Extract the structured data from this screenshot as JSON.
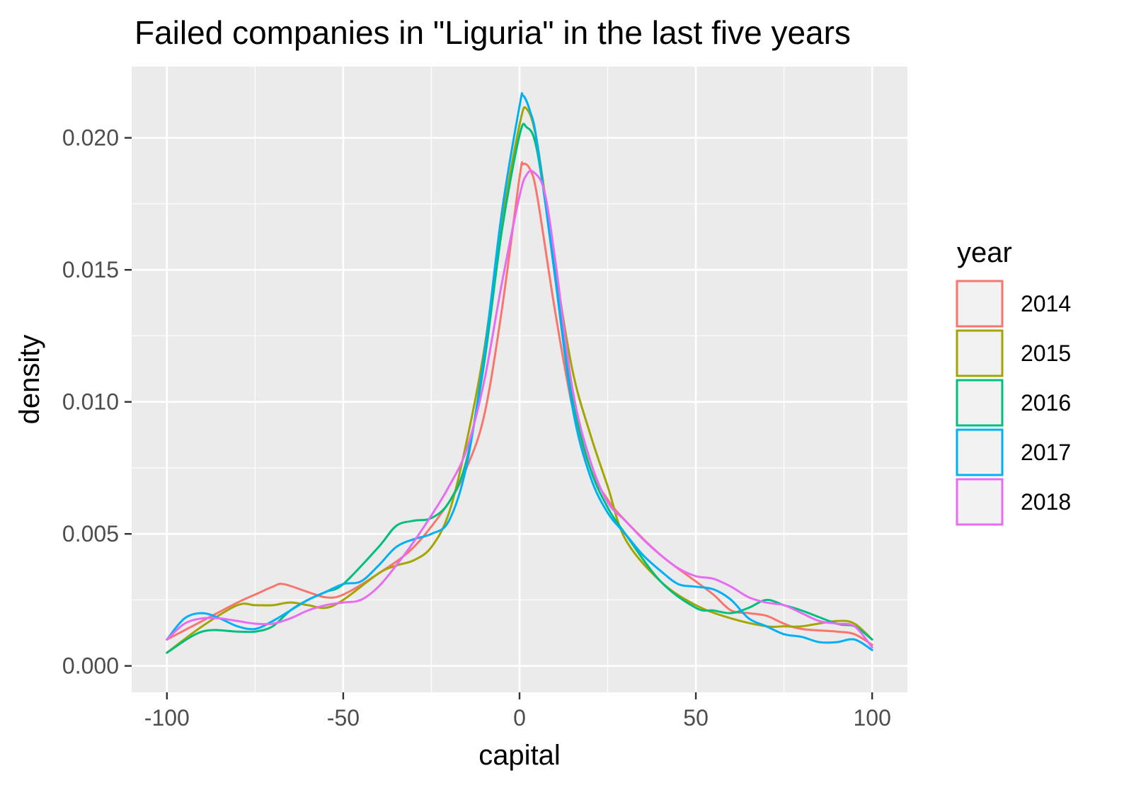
{
  "chart_data": {
    "type": "line",
    "title": "Failed companies in \"Liguria\" in the last five years",
    "xlabel": "capital",
    "ylabel": "density",
    "xlim": [
      -110,
      110
    ],
    "ylim": [
      -0.001,
      0.0227
    ],
    "x_ticks": [
      -100,
      -50,
      0,
      50,
      100
    ],
    "x_tick_labels": [
      "-100",
      "-50",
      "0",
      "50",
      "100"
    ],
    "y_ticks": [
      0.0,
      0.005,
      0.01,
      0.015,
      0.02
    ],
    "y_tick_labels": [
      "0.000",
      "0.005",
      "0.010",
      "0.015",
      "0.020"
    ],
    "grid": true,
    "legend": {
      "title": "year",
      "position": "right"
    },
    "series": [
      {
        "name": "2014",
        "color": "#F8766D",
        "x": [
          -100,
          -90,
          -80,
          -75,
          -70,
          -67,
          -60,
          -55,
          -50,
          -40,
          -30,
          -20,
          -15,
          -10,
          -5,
          0,
          1,
          3,
          5,
          10,
          15,
          20,
          25,
          30,
          40,
          50,
          55,
          60,
          65,
          70,
          75,
          80,
          90,
          95,
          100
        ],
        "y": [
          0.001,
          0.0017,
          0.0024,
          0.0027,
          0.003,
          0.0031,
          0.0028,
          0.0026,
          0.0027,
          0.0035,
          0.0045,
          0.0062,
          0.0075,
          0.0095,
          0.0135,
          0.0185,
          0.019,
          0.0188,
          0.0178,
          0.0135,
          0.0098,
          0.0075,
          0.0063,
          0.0055,
          0.0042,
          0.0032,
          0.0027,
          0.0021,
          0.002,
          0.0019,
          0.0016,
          0.0014,
          0.0013,
          0.0012,
          0.0008
        ]
      },
      {
        "name": "2015",
        "color": "#A3A500",
        "x": [
          -100,
          -90,
          -80,
          -75,
          -70,
          -65,
          -60,
          -55,
          -50,
          -40,
          -35,
          -30,
          -25,
          -20,
          -15,
          -10,
          -5,
          0,
          2,
          5,
          10,
          15,
          20,
          25,
          30,
          40,
          50,
          60,
          70,
          75,
          80,
          90,
          95,
          100
        ],
        "y": [
          0.0005,
          0.0015,
          0.0023,
          0.0023,
          0.0023,
          0.0024,
          0.0023,
          0.0022,
          0.0025,
          0.0035,
          0.0038,
          0.004,
          0.0045,
          0.0058,
          0.0085,
          0.012,
          0.0168,
          0.0205,
          0.0211,
          0.0198,
          0.0152,
          0.0112,
          0.0088,
          0.0068,
          0.0048,
          0.0032,
          0.0023,
          0.0018,
          0.0015,
          0.0015,
          0.0015,
          0.0017,
          0.0016,
          0.001
        ]
      },
      {
        "name": "2016",
        "color": "#00BF7D",
        "x": [
          -100,
          -90,
          -80,
          -75,
          -70,
          -65,
          -60,
          -55,
          -50,
          -40,
          -35,
          -30,
          -25,
          -20,
          -15,
          -10,
          -5,
          0,
          2,
          5,
          10,
          15,
          20,
          25,
          30,
          40,
          50,
          55,
          60,
          65,
          70,
          75,
          80,
          90,
          95,
          100
        ],
        "y": [
          0.0005,
          0.0013,
          0.0013,
          0.0013,
          0.0015,
          0.0021,
          0.0025,
          0.0028,
          0.0031,
          0.0045,
          0.0053,
          0.0055,
          0.0056,
          0.0062,
          0.0078,
          0.0115,
          0.0165,
          0.0201,
          0.0204,
          0.0195,
          0.015,
          0.0102,
          0.0075,
          0.006,
          0.005,
          0.0032,
          0.0022,
          0.0021,
          0.002,
          0.0022,
          0.0025,
          0.0023,
          0.0021,
          0.0016,
          0.0015,
          0.001
        ]
      },
      {
        "name": "2017",
        "color": "#00B0F6",
        "x": [
          -100,
          -95,
          -90,
          -85,
          -80,
          -75,
          -70,
          -65,
          -60,
          -55,
          -50,
          -45,
          -40,
          -35,
          -30,
          -25,
          -20,
          -15,
          -10,
          -5,
          0,
          1,
          3,
          5,
          10,
          15,
          20,
          25,
          30,
          35,
          40,
          45,
          50,
          55,
          60,
          65,
          70,
          75,
          80,
          85,
          90,
          95,
          100
        ],
        "y": [
          0.001,
          0.0018,
          0.002,
          0.0018,
          0.0015,
          0.0014,
          0.0017,
          0.0021,
          0.0025,
          0.0028,
          0.0031,
          0.0032,
          0.0038,
          0.0045,
          0.0048,
          0.005,
          0.0055,
          0.0076,
          0.0118,
          0.0172,
          0.0212,
          0.0216,
          0.021,
          0.0198,
          0.0148,
          0.0098,
          0.0072,
          0.0058,
          0.005,
          0.0042,
          0.0036,
          0.0031,
          0.003,
          0.0029,
          0.0025,
          0.0018,
          0.0015,
          0.0012,
          0.0011,
          0.0009,
          0.0009,
          0.001,
          0.0006
        ]
      },
      {
        "name": "2018",
        "color": "#E76BF3",
        "x": [
          -100,
          -95,
          -90,
          -85,
          -80,
          -75,
          -70,
          -65,
          -60,
          -55,
          -50,
          -45,
          -40,
          -35,
          -30,
          -25,
          -20,
          -15,
          -10,
          -5,
          0,
          2,
          4,
          7,
          10,
          15,
          20,
          25,
          30,
          35,
          40,
          45,
          50,
          55,
          60,
          65,
          70,
          75,
          80,
          85,
          90,
          95,
          100
        ],
        "y": [
          0.001,
          0.0016,
          0.0018,
          0.0018,
          0.0017,
          0.0016,
          0.0016,
          0.0018,
          0.0021,
          0.0023,
          0.0024,
          0.0025,
          0.003,
          0.0038,
          0.0047,
          0.0057,
          0.0068,
          0.0082,
          0.0108,
          0.0145,
          0.0178,
          0.0186,
          0.0187,
          0.018,
          0.0155,
          0.0105,
          0.0078,
          0.0062,
          0.0055,
          0.0048,
          0.0042,
          0.0037,
          0.0034,
          0.0033,
          0.003,
          0.0026,
          0.0024,
          0.0023,
          0.002,
          0.0017,
          0.0016,
          0.0015,
          0.0007
        ]
      }
    ]
  }
}
